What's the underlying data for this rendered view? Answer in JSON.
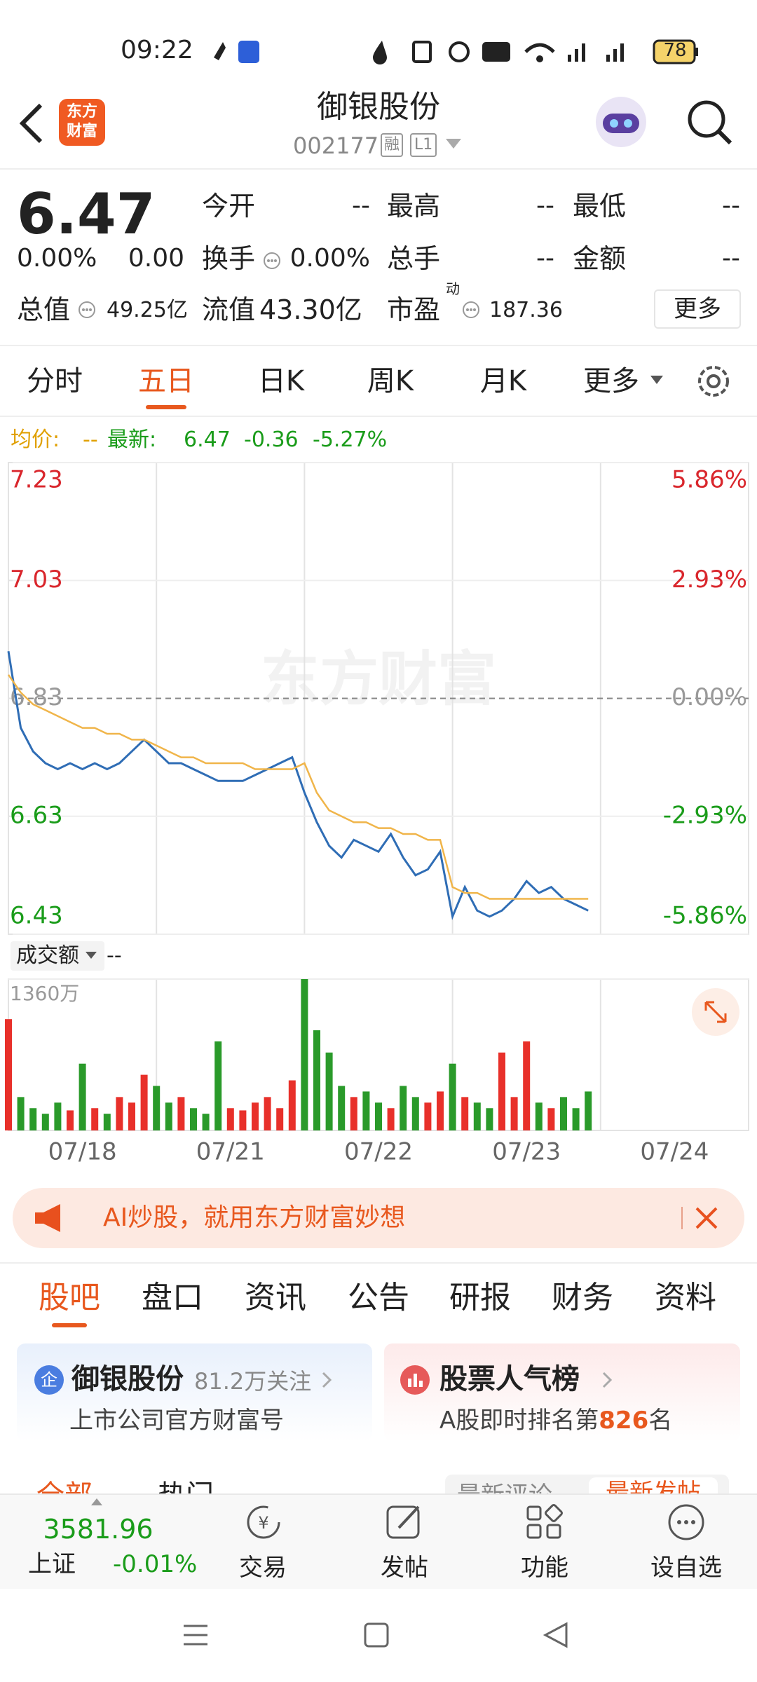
{
  "status_bar": {
    "time": "09:22",
    "battery": 78
  },
  "header": {
    "logo": [
      "东方",
      "财富"
    ],
    "title": "御银股份",
    "code": "002177",
    "badges": [
      "融",
      "L1"
    ]
  },
  "quote": {
    "price": "6.47",
    "change_pct": "0.00%",
    "change": "0.00",
    "fields": [
      {
        "label": "今开",
        "value": "--"
      },
      {
        "label": "最高",
        "value": "--"
      },
      {
        "label": "最低",
        "value": "--"
      },
      {
        "label": "换手",
        "value": "0.00%"
      },
      {
        "label": "总手",
        "value": "--"
      },
      {
        "label": "金额",
        "value": "--"
      },
      {
        "label": "总值",
        "value": "49.25亿"
      },
      {
        "label": "流值",
        "value": "43.30亿"
      },
      {
        "label": "市盈",
        "sup": "动",
        "value": "187.36"
      }
    ],
    "more": "更多"
  },
  "tabs": [
    "分时",
    "五日",
    "日K",
    "周K",
    "月K",
    "更多"
  ],
  "legend": {
    "avg_label": "均价:",
    "avg": "--",
    "last_label": "最新:",
    "last": "6.47",
    "change": "-0.36",
    "change_pct": "-5.27%"
  },
  "chart_data": [
    {
      "type": "line",
      "watermark": "东方财富",
      "x": [
        0,
        1,
        2,
        3,
        4,
        5,
        6,
        7,
        8,
        9,
        10,
        11,
        12,
        13,
        14,
        15,
        16,
        17,
        18,
        19,
        20,
        21,
        22,
        23,
        24,
        25,
        26,
        27,
        28,
        29,
        30,
        31,
        32,
        33,
        34,
        35,
        36,
        37,
        38,
        39,
        40,
        41,
        42,
        43,
        44,
        45,
        46,
        47
      ],
      "xlim": [
        0,
        60
      ],
      "xticks": [
        0,
        12,
        24,
        36,
        48,
        60
      ],
      "series": [
        {
          "color": "#2f6db5",
          "values": [
            6.91,
            6.78,
            6.74,
            6.72,
            6.71,
            6.72,
            6.71,
            6.72,
            6.71,
            6.72,
            6.74,
            6.76,
            6.74,
            6.72,
            6.72,
            6.71,
            6.7,
            6.69,
            6.69,
            6.69,
            6.7,
            6.71,
            6.72,
            6.73,
            6.67,
            6.62,
            6.58,
            6.56,
            6.59,
            6.58,
            6.57,
            6.6,
            6.56,
            6.53,
            6.54,
            6.57,
            6.46,
            6.51,
            6.47,
            6.46,
            6.47,
            6.49,
            6.52,
            6.5,
            6.51,
            6.49,
            6.48,
            6.47
          ]
        },
        {
          "color": "#f0b54a",
          "values": [
            6.87,
            6.84,
            6.82,
            6.81,
            6.8,
            6.79,
            6.78,
            6.78,
            6.77,
            6.77,
            6.76,
            6.76,
            6.75,
            6.74,
            6.73,
            6.73,
            6.72,
            6.72,
            6.72,
            6.72,
            6.71,
            6.71,
            6.71,
            6.71,
            6.72,
            6.67,
            6.64,
            6.63,
            6.62,
            6.62,
            6.61,
            6.61,
            6.6,
            6.6,
            6.59,
            6.59,
            6.51,
            6.5,
            6.5,
            6.49,
            6.49,
            6.49,
            6.49,
            6.49,
            6.49,
            6.49,
            6.49,
            6.49
          ]
        }
      ],
      "ylim": [
        6.43,
        7.23
      ],
      "yticks": [
        7.23,
        7.03,
        6.83,
        6.63,
        6.43
      ],
      "y2lim": [
        -5.86,
        5.86
      ],
      "y2ticks": [
        {
          "value": 5.86,
          "label": "5.86%"
        },
        {
          "value": 2.93,
          "label": "2.93%"
        },
        {
          "value": 0,
          "label": "0.00%"
        },
        {
          "value": -2.93,
          "label": "-2.93%"
        },
        {
          "value": -5.86,
          "label": "-5.86%"
        }
      ],
      "colors": {
        "up": "#d9262c",
        "down": "#1a9c1a",
        "flat": "#999999"
      }
    },
    {
      "type": "bar",
      "label": "成交额",
      "value": "--",
      "values": [
        1000,
        300,
        200,
        150,
        250,
        180,
        600,
        200,
        150,
        300,
        250,
        500,
        400,
        250,
        300,
        200,
        150,
        800,
        200,
        180,
        250,
        300,
        200,
        450,
        1360,
        900,
        700,
        400,
        300,
        350,
        250,
        200,
        400,
        300,
        250,
        350,
        600,
        300,
        250,
        200,
        700,
        300,
        800,
        250,
        200,
        300,
        200,
        350
      ],
      "ylim": [
        0,
        1360
      ],
      "yticks": [
        {
          "value": 1360,
          "label": "1360万"
        }
      ],
      "xticks": [
        {
          "value": 6,
          "label": "07/18"
        },
        {
          "value": 18,
          "label": "07/21"
        },
        {
          "value": 30,
          "label": "07/22"
        },
        {
          "value": 42,
          "label": "07/23"
        },
        {
          "value": 54,
          "label": "07/24"
        }
      ],
      "up_color": "#e8302a",
      "down_color": "#2a9a2a"
    }
  ],
  "banner": "AI炒股，就用东方财富妙想",
  "sub_tabs": [
    "股吧",
    "盘口",
    "资讯",
    "公告",
    "研报",
    "财务",
    "资料"
  ],
  "cards": [
    {
      "title": "御银股份",
      "meta": "81.2万关注",
      "subtitle": "上市公司官方财富号"
    },
    {
      "title": "股票人气榜",
      "subtitle_pre": "A股即时排名第",
      "rank": "826",
      "subtitle_post": "名"
    }
  ],
  "filters": [
    "全部",
    "热门",
    "最新评论",
    "最新发帖"
  ],
  "bottom_nav": {
    "index_value": "3581.96",
    "index_name": "上证",
    "index_change": "-0.01%",
    "items": [
      "交易",
      "发帖",
      "功能",
      "设自选"
    ]
  }
}
